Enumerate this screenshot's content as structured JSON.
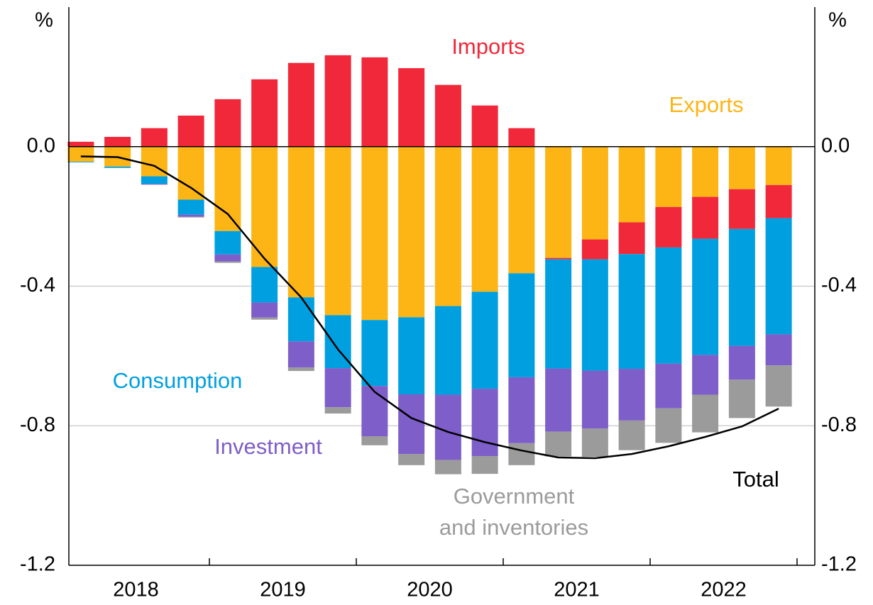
{
  "chart_data": {
    "type": "bar",
    "stacked": true,
    "ylabel": "%",
    "y2label": "%",
    "ylim": [
      -1.2,
      0.4
    ],
    "yticks": [
      -1.2,
      -0.8,
      -0.4,
      {
        "value": 0,
        "label": "0.0"
      }
    ],
    "grid": true,
    "year_labels": [
      "2018",
      "2019",
      "2020",
      "2021",
      "2022"
    ],
    "series": [
      {
        "name": "Exports",
        "color": "#fdb515",
        "values": [
          -0.043,
          -0.057,
          -0.085,
          -0.152,
          -0.242,
          -0.345,
          -0.432,
          -0.483,
          -0.497,
          -0.489,
          -0.457,
          -0.416,
          -0.363,
          -0.319,
          -0.266,
          -0.217,
          -0.173,
          -0.144,
          -0.122,
          -0.11
        ]
      },
      {
        "name": "Imports",
        "color": "#f0283a",
        "values": [
          0.014,
          0.028,
          0.053,
          0.089,
          0.136,
          0.193,
          0.24,
          0.262,
          0.256,
          0.225,
          0.177,
          0.118,
          0.053,
          -0.004,
          -0.057,
          -0.091,
          -0.116,
          -0.12,
          -0.114,
          -0.095
        ]
      },
      {
        "name": "Consumption",
        "color": "#00a0e0",
        "values": [
          -0.002,
          -0.004,
          -0.022,
          -0.043,
          -0.067,
          -0.102,
          -0.126,
          -0.152,
          -0.189,
          -0.221,
          -0.254,
          -0.278,
          -0.298,
          -0.313,
          -0.319,
          -0.329,
          -0.333,
          -0.333,
          -0.335,
          -0.333
        ]
      },
      {
        "name": "Investment",
        "color": "#7e5ec8",
        "values": [
          0,
          0,
          -0.002,
          -0.006,
          -0.02,
          -0.043,
          -0.075,
          -0.112,
          -0.144,
          -0.171,
          -0.187,
          -0.193,
          -0.189,
          -0.181,
          -0.166,
          -0.148,
          -0.128,
          -0.114,
          -0.097,
          -0.089
        ]
      },
      {
        "name": "Government\nand inventories",
        "color": "#9b9b9b",
        "values": [
          0,
          0,
          0,
          -0.002,
          -0.004,
          -0.006,
          -0.01,
          -0.018,
          -0.026,
          -0.032,
          -0.041,
          -0.051,
          -0.063,
          -0.071,
          -0.081,
          -0.085,
          -0.099,
          -0.108,
          -0.11,
          -0.118
        ]
      },
      {
        "name": "Total",
        "color": "#000000",
        "type": "line",
        "values": [
          -0.028,
          -0.03,
          -0.055,
          -0.118,
          -0.193,
          -0.321,
          -0.432,
          -0.581,
          -0.703,
          -0.778,
          -0.818,
          -0.847,
          -0.871,
          -0.891,
          -0.893,
          -0.881,
          -0.859,
          -0.832,
          -0.802,
          -0.751
        ]
      }
    ]
  }
}
